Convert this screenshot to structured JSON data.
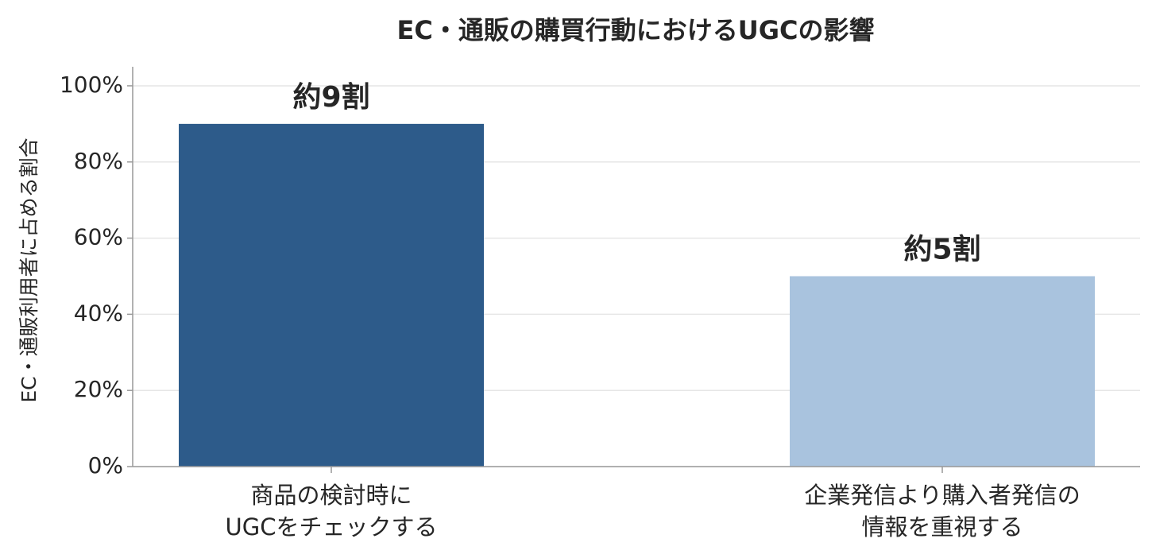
{
  "chart_data": {
    "type": "bar",
    "title": "EC・通販の購買行動におけるUGCの影響",
    "ylabel": "EC・通販利用者に占める割合",
    "categories": [
      "商品の検討時に\nUGCをチェックする",
      "企業発信より購入者発信の\n情報を重視する"
    ],
    "values": [
      90,
      50
    ],
    "value_labels": [
      "約9割",
      "約5割"
    ],
    "colors": [
      "#2d5b8a",
      "#a9c3de"
    ],
    "ylim": [
      0,
      105
    ],
    "yticks": [
      {
        "value": 0,
        "label": "0%"
      },
      {
        "value": 20,
        "label": "20%"
      },
      {
        "value": 40,
        "label": "40%"
      },
      {
        "value": 60,
        "label": "60%"
      },
      {
        "value": 80,
        "label": "80%"
      },
      {
        "value": 100,
        "label": "100%"
      }
    ],
    "grid": true
  }
}
